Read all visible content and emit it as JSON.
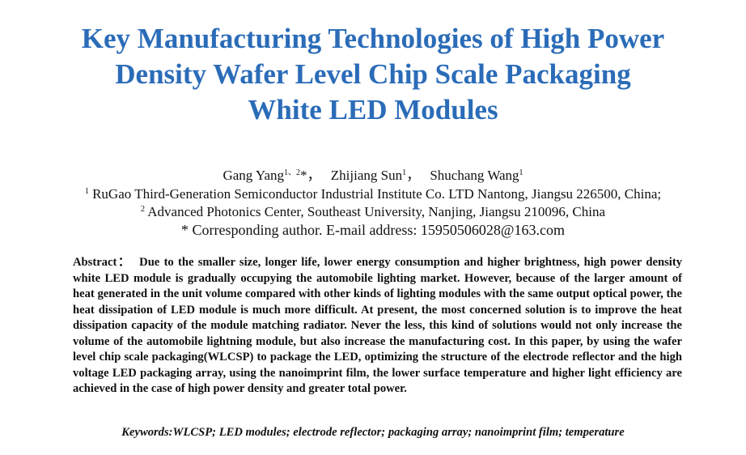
{
  "title": {
    "lines": [
      "Key Manufacturing Technologies of High Power",
      "Density Wafer Level Chip Scale Packaging",
      "White LED Modules"
    ]
  },
  "authors": [
    {
      "name": "Gang Yang",
      "sup": "1、2",
      "suffix": "*，"
    },
    {
      "name": "Zhijiang Sun",
      "sup": "1",
      "suffix": "，"
    },
    {
      "name": "Shuchang Wang",
      "sup": "1"
    }
  ],
  "affiliations": [
    {
      "sup": "1",
      "text": "RuGao Third-Generation Semiconductor Industrial Institute Co. LTD Nantong, Jiangsu 226500, China;"
    },
    {
      "sup": "2",
      "text": "Advanced Photonics Center, Southeast University, Nanjing, Jiangsu 210096, China"
    }
  ],
  "corresponding": "* Corresponding author. E-mail address: 15950506028@163.com",
  "abstract": {
    "label": "Abstract：",
    "text": "Due to the smaller size, longer life, lower energy consumption and higher brightness, high power density white LED module is gradually occupying the automobile lighting market. However, because of the larger amount of heat generated in the unit volume compared with other kinds of lighting modules with the same output optical power, the heat dissipation of LED module is much more difficult. At present, the most concerned solution is to improve the heat dissipation capacity of the module matching radiator. Never the less, this kind of solutions would not only increase the volume of the automobile lightning module, but also increase the manufacturing cost. In this paper, by using the wafer level chip scale packaging(WLCSP) to package the LED, optimizing the structure of the electrode reflector and the high voltage LED packaging array, using the nanoimprint film, the lower surface temperature and higher light efficiency are achieved in the case of high power density and greater total power."
  },
  "keywords": {
    "label": "Keywords:",
    "text": "WLCSP; LED modules; electrode reflector; packaging array; nanoimprint film; temperature"
  }
}
